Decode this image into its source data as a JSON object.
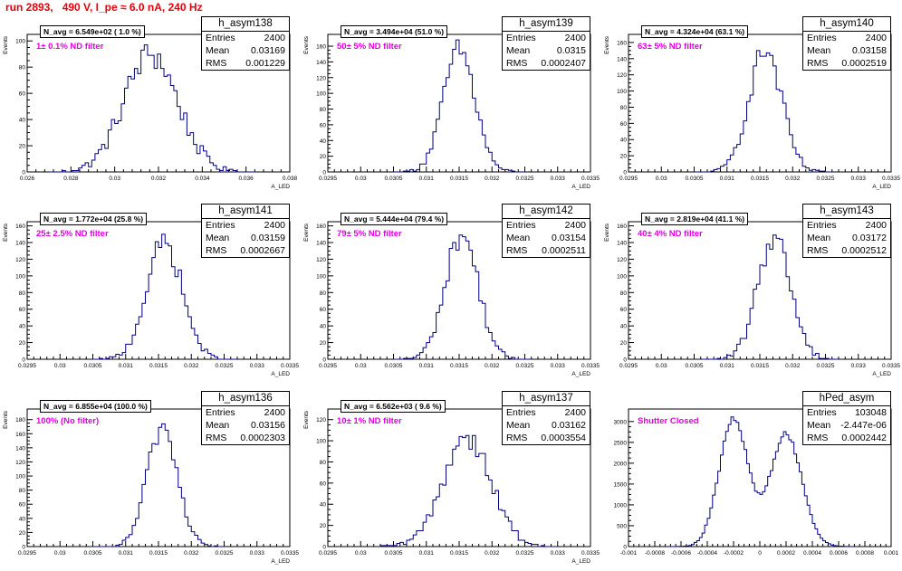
{
  "header": {
    "run_title": "run 2893,   490 V, I_pe ≈ 6.0 nA, 240 Hz"
  },
  "stat_labels": {
    "entries": "Entries",
    "mean": "Mean",
    "rms": "RMS"
  },
  "colors": {
    "histogram_line": "#000080",
    "run_title": "#e8000b",
    "filter_label": "#e300e3"
  },
  "chart_data": [
    {
      "type": "bar",
      "name": "h_asym138",
      "ylabel": "Events",
      "xlabel": "A_LED",
      "n_avg": "N_avg = 6.549e+02 ( 1.0 %)",
      "filter_label": "1± 0.1% ND filter",
      "entries": "2400",
      "mean": "0.03169",
      "rms": "0.001229",
      "xlim": [
        0.026,
        0.038
      ],
      "ylim": [
        0,
        105
      ],
      "xticks": [
        "0.026",
        "0.028",
        "0.03",
        "0.032",
        "0.034",
        "0.036",
        "0.038"
      ],
      "xtick_values": [
        0.026,
        0.028,
        0.03,
        0.032,
        0.034,
        0.036,
        0.038
      ],
      "yticks": [
        "0",
        "20",
        "40",
        "60",
        "80",
        "100"
      ],
      "ytick_values": [
        0,
        20,
        40,
        60,
        80,
        100
      ],
      "peaks": [
        {
          "mu": 0.03165,
          "sigma": 0.00123,
          "amp": 90
        }
      ],
      "bin_width": 0.00015,
      "x_range": [
        0.027,
        0.0365
      ]
    },
    {
      "type": "bar",
      "name": "h_asym139",
      "ylabel": "Events",
      "xlabel": "A_LED",
      "n_avg": "N_avg = 3.494e+04 (51.0 %)",
      "filter_label": "50± 5% ND filter",
      "entries": "2400",
      "mean": "0.0315",
      "rms": "0.0002407",
      "xlim": [
        0.0295,
        0.0335
      ],
      "ylim": [
        0,
        175
      ],
      "xticks": [
        "0.0295",
        "0.03",
        "0.0305",
        "0.031",
        "0.0315",
        "0.032",
        "0.0325",
        "0.033",
        "0.0335"
      ],
      "xtick_values": [
        0.0295,
        0.03,
        0.0305,
        0.031,
        0.0315,
        0.032,
        0.0325,
        0.033,
        0.0335
      ],
      "yticks": [
        "0",
        "20",
        "40",
        "60",
        "80",
        "100",
        "120",
        "140",
        "160"
      ],
      "ytick_values": [
        0,
        20,
        40,
        60,
        80,
        100,
        120,
        140,
        160
      ],
      "peaks": [
        {
          "mu": 0.0315,
          "sigma": 0.00024,
          "amp": 155
        }
      ],
      "bin_width": 5e-05,
      "x_range": [
        0.0305,
        0.0325
      ]
    },
    {
      "type": "bar",
      "name": "h_asym140",
      "ylabel": "Events",
      "xlabel": "A_LED",
      "n_avg": "N_avg = 4.324e+04 (63.1 %)",
      "filter_label": "63± 5% ND filter",
      "entries": "2400",
      "mean": "0.03158",
      "rms": "0.0002519",
      "xlim": [
        0.0295,
        0.0335
      ],
      "ylim": [
        0,
        170
      ],
      "xticks": [
        "0.0295",
        "0.03",
        "0.0305",
        "0.031",
        "0.0315",
        "0.032",
        "0.0325",
        "0.033",
        "0.0335"
      ],
      "xtick_values": [
        0.0295,
        0.03,
        0.0305,
        0.031,
        0.0315,
        0.032,
        0.0325,
        0.033,
        0.0335
      ],
      "yticks": [
        "0",
        "20",
        "40",
        "60",
        "80",
        "100",
        "120",
        "140",
        "160"
      ],
      "ytick_values": [
        0,
        20,
        40,
        60,
        80,
        100,
        120,
        140,
        160
      ],
      "peaks": [
        {
          "mu": 0.03158,
          "sigma": 0.00025,
          "amp": 150
        }
      ],
      "bin_width": 5e-05,
      "x_range": [
        0.0305,
        0.0326
      ]
    },
    {
      "type": "bar",
      "name": "h_asym141",
      "ylabel": "Events",
      "xlabel": "A_LED",
      "n_avg": "N_avg = 1.772e+04 (25.8 %)",
      "filter_label": "25± 2.5% ND filter",
      "entries": "2400",
      "mean": "0.03159",
      "rms": "0.0002667",
      "xlim": [
        0.0295,
        0.0335
      ],
      "ylim": [
        0,
        165
      ],
      "xticks": [
        "0.0295",
        "0.03",
        "0.0305",
        "0.031",
        "0.0315",
        "0.032",
        "0.0325",
        "0.033",
        "0.0335"
      ],
      "xtick_values": [
        0.0295,
        0.03,
        0.0305,
        0.031,
        0.0315,
        0.032,
        0.0325,
        0.033,
        0.0335
      ],
      "yticks": [
        "0",
        "20",
        "40",
        "60",
        "80",
        "100",
        "120",
        "140",
        "160"
      ],
      "ytick_values": [
        0,
        20,
        40,
        60,
        80,
        100,
        120,
        140,
        160
      ],
      "peaks": [
        {
          "mu": 0.03159,
          "sigma": 0.00027,
          "amp": 140
        }
      ],
      "bin_width": 5e-05,
      "x_range": [
        0.0305,
        0.0327
      ]
    },
    {
      "type": "bar",
      "name": "h_asym142",
      "ylabel": "Events",
      "xlabel": "A_LED",
      "n_avg": "N_avg = 5.444e+04 (79.4 %)",
      "filter_label": "79± 5% ND filter",
      "entries": "2400",
      "mean": "0.03154",
      "rms": "0.0002511",
      "xlim": [
        0.0295,
        0.0335
      ],
      "ylim": [
        0,
        165
      ],
      "xticks": [
        "0.0295",
        "0.03",
        "0.0305",
        "0.031",
        "0.0315",
        "0.032",
        "0.0325",
        "0.033",
        "0.0335"
      ],
      "xtick_values": [
        0.0295,
        0.03,
        0.0305,
        0.031,
        0.0315,
        0.032,
        0.0325,
        0.033,
        0.0335
      ],
      "yticks": [
        "0",
        "20",
        "40",
        "60",
        "80",
        "100",
        "120",
        "140",
        "160"
      ],
      "ytick_values": [
        0,
        20,
        40,
        60,
        80,
        100,
        120,
        140,
        160
      ],
      "peaks": [
        {
          "mu": 0.03154,
          "sigma": 0.00025,
          "amp": 150
        }
      ],
      "bin_width": 5e-05,
      "x_range": [
        0.0305,
        0.0326
      ]
    },
    {
      "type": "bar",
      "name": "h_asym143",
      "ylabel": "Events",
      "xlabel": "A_LED",
      "n_avg": "N_avg = 2.819e+04 (41.1 %)",
      "filter_label": "40± 4% ND filter",
      "entries": "2400",
      "mean": "0.03172",
      "rms": "0.0002512",
      "xlim": [
        0.0295,
        0.0335
      ],
      "ylim": [
        0,
        165
      ],
      "xticks": [
        "0.0295",
        "0.03",
        "0.0305",
        "0.031",
        "0.0315",
        "0.032",
        "0.0325",
        "0.033",
        "0.0335"
      ],
      "xtick_values": [
        0.0295,
        0.03,
        0.0305,
        0.031,
        0.0315,
        0.032,
        0.0325,
        0.033,
        0.0335
      ],
      "yticks": [
        "0",
        "20",
        "40",
        "60",
        "80",
        "100",
        "120",
        "140",
        "160"
      ],
      "ytick_values": [
        0,
        20,
        40,
        60,
        80,
        100,
        120,
        140,
        160
      ],
      "peaks": [
        {
          "mu": 0.03172,
          "sigma": 0.00025,
          "amp": 148
        }
      ],
      "bin_width": 5e-05,
      "x_range": [
        0.0306,
        0.0327
      ]
    },
    {
      "type": "bar",
      "name": "h_asym136",
      "ylabel": "Events",
      "xlabel": "A_LED",
      "n_avg": "N_avg = 6.855e+04 (100.0 %)",
      "filter_label": "100% (No filter)",
      "entries": "2400",
      "mean": "0.03156",
      "rms": "0.0002303",
      "xlim": [
        0.0295,
        0.0335
      ],
      "ylim": [
        0,
        195
      ],
      "xticks": [
        "0.0295",
        "0.03",
        "0.0305",
        "0.031",
        "0.0315",
        "0.032",
        "0.0325",
        "0.033",
        "0.0335"
      ],
      "xtick_values": [
        0.0295,
        0.03,
        0.0305,
        0.031,
        0.0315,
        0.032,
        0.0325,
        0.033,
        0.0335
      ],
      "yticks": [
        "0",
        "20",
        "40",
        "60",
        "80",
        "100",
        "120",
        "140",
        "160",
        "180"
      ],
      "ytick_values": [
        0,
        20,
        40,
        60,
        80,
        100,
        120,
        140,
        160,
        180
      ],
      "peaks": [
        {
          "mu": 0.03156,
          "sigma": 0.00023,
          "amp": 170
        }
      ],
      "bin_width": 5e-05,
      "x_range": [
        0.0305,
        0.0325
      ]
    },
    {
      "type": "bar",
      "name": "h_asym137",
      "ylabel": "Events",
      "xlabel": "A_LED",
      "n_avg": "N_avg = 6.562e+03 ( 9.6 %)",
      "filter_label": "10± 1% ND filter",
      "entries": "2400",
      "mean": "0.03162",
      "rms": "0.0003554",
      "xlim": [
        0.0295,
        0.0335
      ],
      "ylim": [
        0,
        130
      ],
      "xticks": [
        "0.0295",
        "0.03",
        "0.0305",
        "0.031",
        "0.0315",
        "0.032",
        "0.0325",
        "0.033",
        "0.0335"
      ],
      "xtick_values": [
        0.0295,
        0.03,
        0.0305,
        0.031,
        0.0315,
        0.032,
        0.0325,
        0.033,
        0.0335
      ],
      "yticks": [
        "0",
        "20",
        "40",
        "60",
        "80",
        "100",
        "120"
      ],
      "ytick_values": [
        0,
        20,
        40,
        60,
        80,
        100,
        120
      ],
      "peaks": [
        {
          "mu": 0.03162,
          "sigma": 0.00036,
          "amp": 105
        }
      ],
      "bin_width": 5e-05,
      "x_range": [
        0.0303,
        0.033
      ]
    },
    {
      "type": "bar",
      "name": "hPed_asym",
      "ylabel": "",
      "xlabel": "",
      "n_avg": "",
      "filter_label": "Shutter Closed",
      "entries": "103048",
      "mean": "-2.447e-06",
      "rms": "0.0002442",
      "xlim": [
        -0.001,
        0.001
      ],
      "ylim": [
        0,
        3300
      ],
      "xticks": [
        "-0.001",
        "-0.0008",
        "-0.0006",
        "-0.0004",
        "-0.0002",
        "0",
        "0.0002",
        "0.0004",
        "0.0006",
        "0.0008",
        "0.001"
      ],
      "xtick_values": [
        -0.001,
        -0.0008,
        -0.0006,
        -0.0004,
        -0.0002,
        0,
        0.0002,
        0.0004,
        0.0006,
        0.0008,
        0.001
      ],
      "yticks": [
        "0",
        "500",
        "1000",
        "1500",
        "2000",
        "2500",
        "3000"
      ],
      "ytick_values": [
        0,
        500,
        1000,
        1500,
        2000,
        2500,
        3000
      ],
      "peaks": [
        {
          "mu": -0.0002,
          "sigma": 0.00011,
          "amp": 3050
        },
        {
          "mu": 0.0002,
          "sigma": 0.00012,
          "amp": 2700
        }
      ],
      "bin_width": 2e-05,
      "x_range": [
        -0.0007,
        0.0007
      ]
    }
  ]
}
